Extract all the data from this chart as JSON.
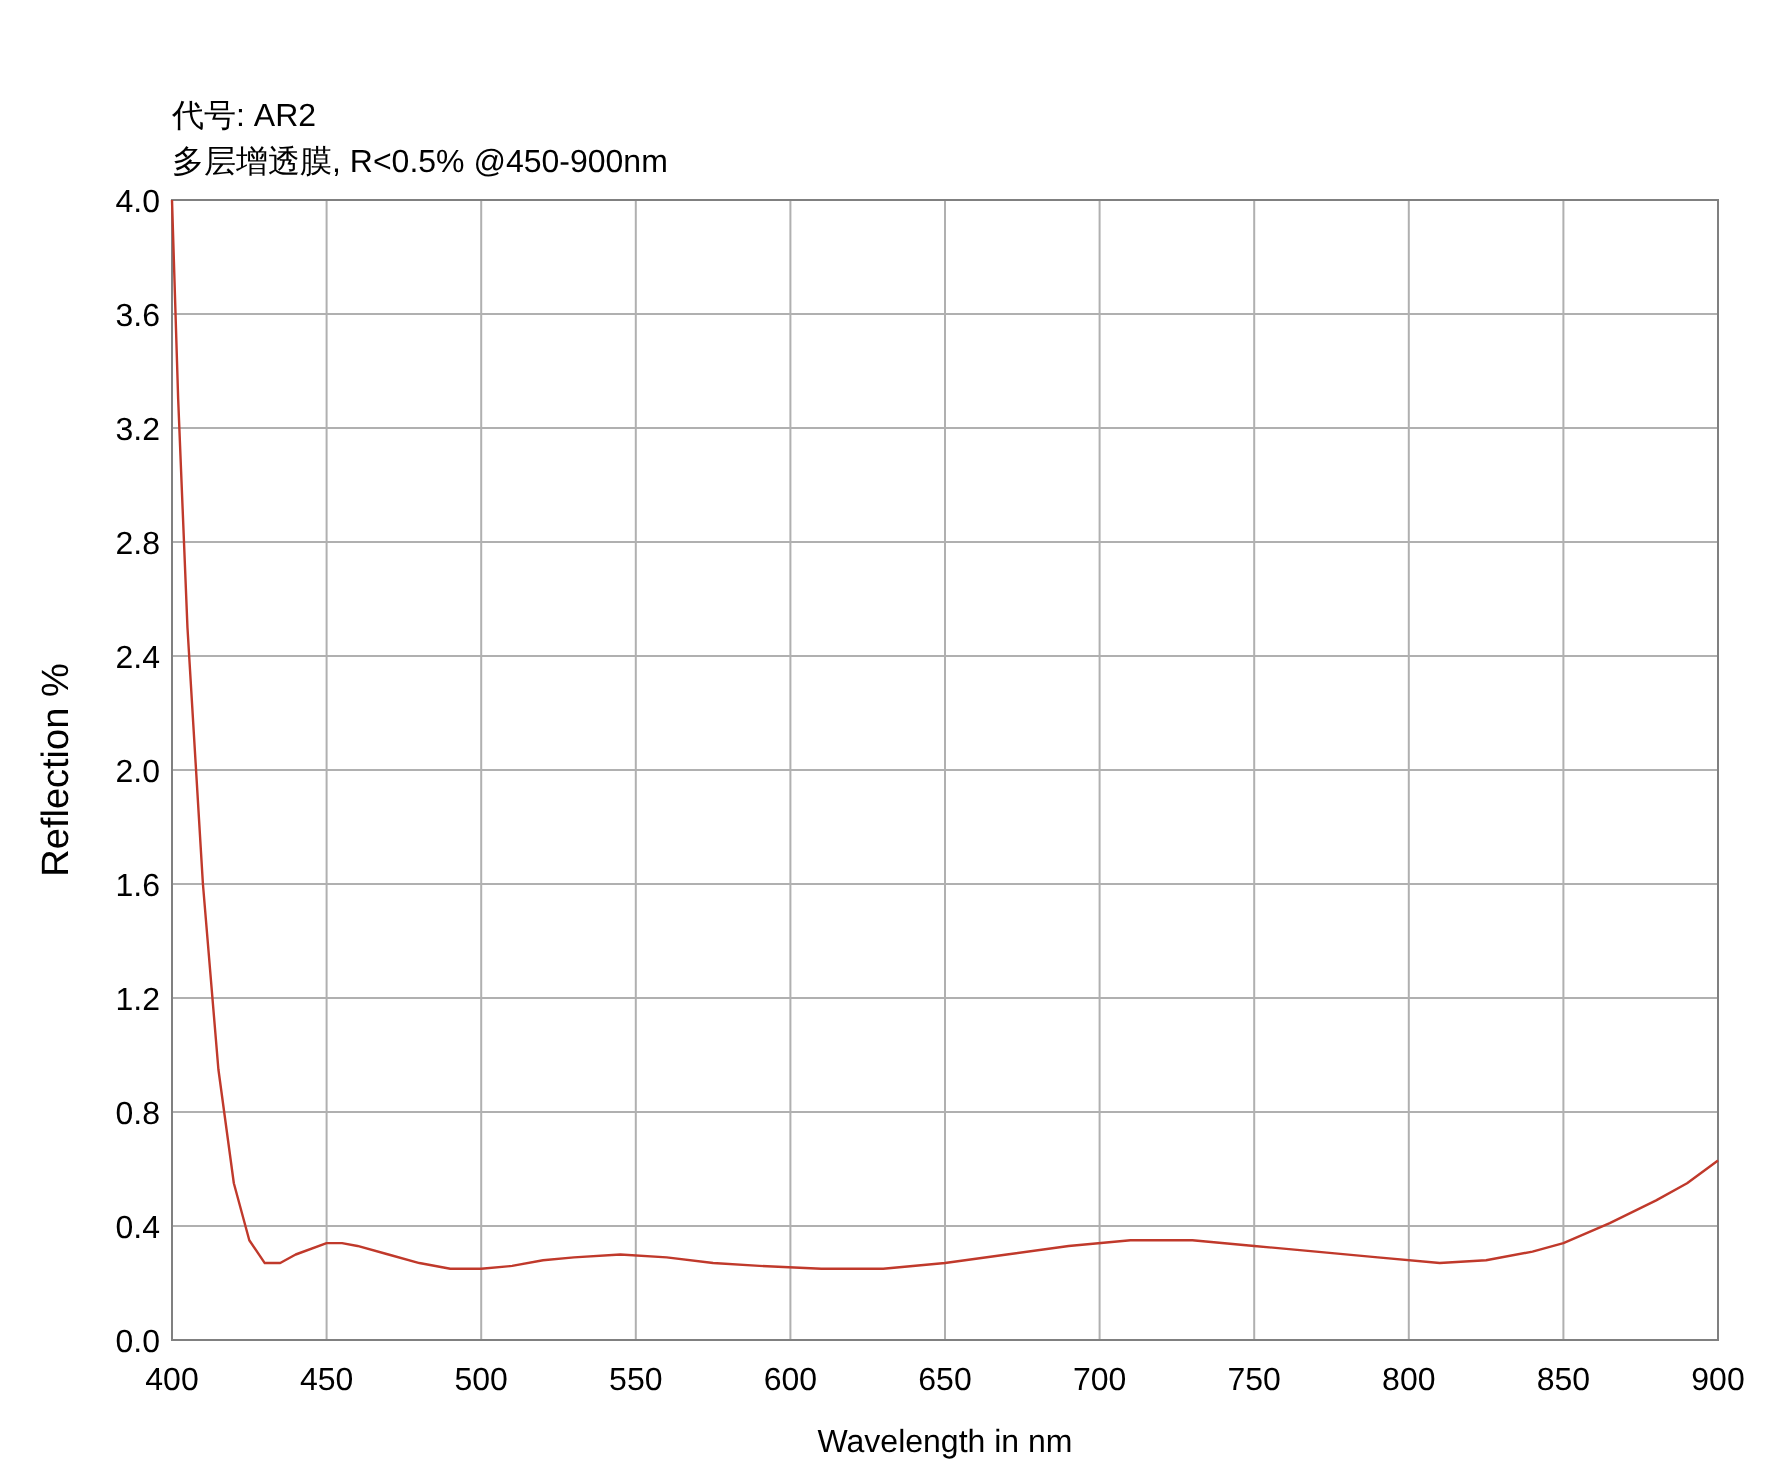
{
  "chart_data": {
    "type": "line",
    "title": "代号: AR2",
    "subtitle": "多层增透膜, R<0.5% @450-900nm",
    "xlabel": "Wavelength in nm",
    "ylabel": "Reflection %",
    "xlim": [
      400,
      900
    ],
    "xticks": [
      400,
      450,
      500,
      550,
      600,
      650,
      700,
      750,
      800,
      850,
      900
    ],
    "ylim": [
      0,
      4
    ],
    "yticks": [
      {
        "value": 0,
        "label": "0.0"
      },
      0.4,
      0.8,
      1.2,
      1.6,
      {
        "value": 2,
        "label": "2.0"
      },
      2.4,
      2.8,
      3.2,
      3.6,
      {
        "value": 4,
        "label": "4.0"
      }
    ],
    "grid": true,
    "marker": "none",
    "line_style": "solid",
    "series": [
      {
        "color": "#c0392b",
        "x": [
          400,
          402,
          405,
          410,
          415,
          420,
          425,
          430,
          435,
          440,
          450,
          455,
          460,
          470,
          480,
          490,
          500,
          510,
          520,
          530,
          545,
          560,
          575,
          590,
          610,
          630,
          650,
          670,
          690,
          710,
          730,
          750,
          770,
          790,
          810,
          825,
          840,
          850,
          865,
          880,
          890,
          900
        ],
        "values": [
          4.0,
          3.3,
          2.5,
          1.6,
          0.95,
          0.55,
          0.35,
          0.27,
          0.27,
          0.3,
          0.34,
          0.34,
          0.33,
          0.3,
          0.27,
          0.25,
          0.25,
          0.26,
          0.28,
          0.29,
          0.3,
          0.29,
          0.27,
          0.26,
          0.25,
          0.25,
          0.27,
          0.3,
          0.33,
          0.35,
          0.35,
          0.33,
          0.31,
          0.29,
          0.27,
          0.28,
          0.31,
          0.34,
          0.41,
          0.49,
          0.55,
          0.63
        ]
      }
    ]
  }
}
